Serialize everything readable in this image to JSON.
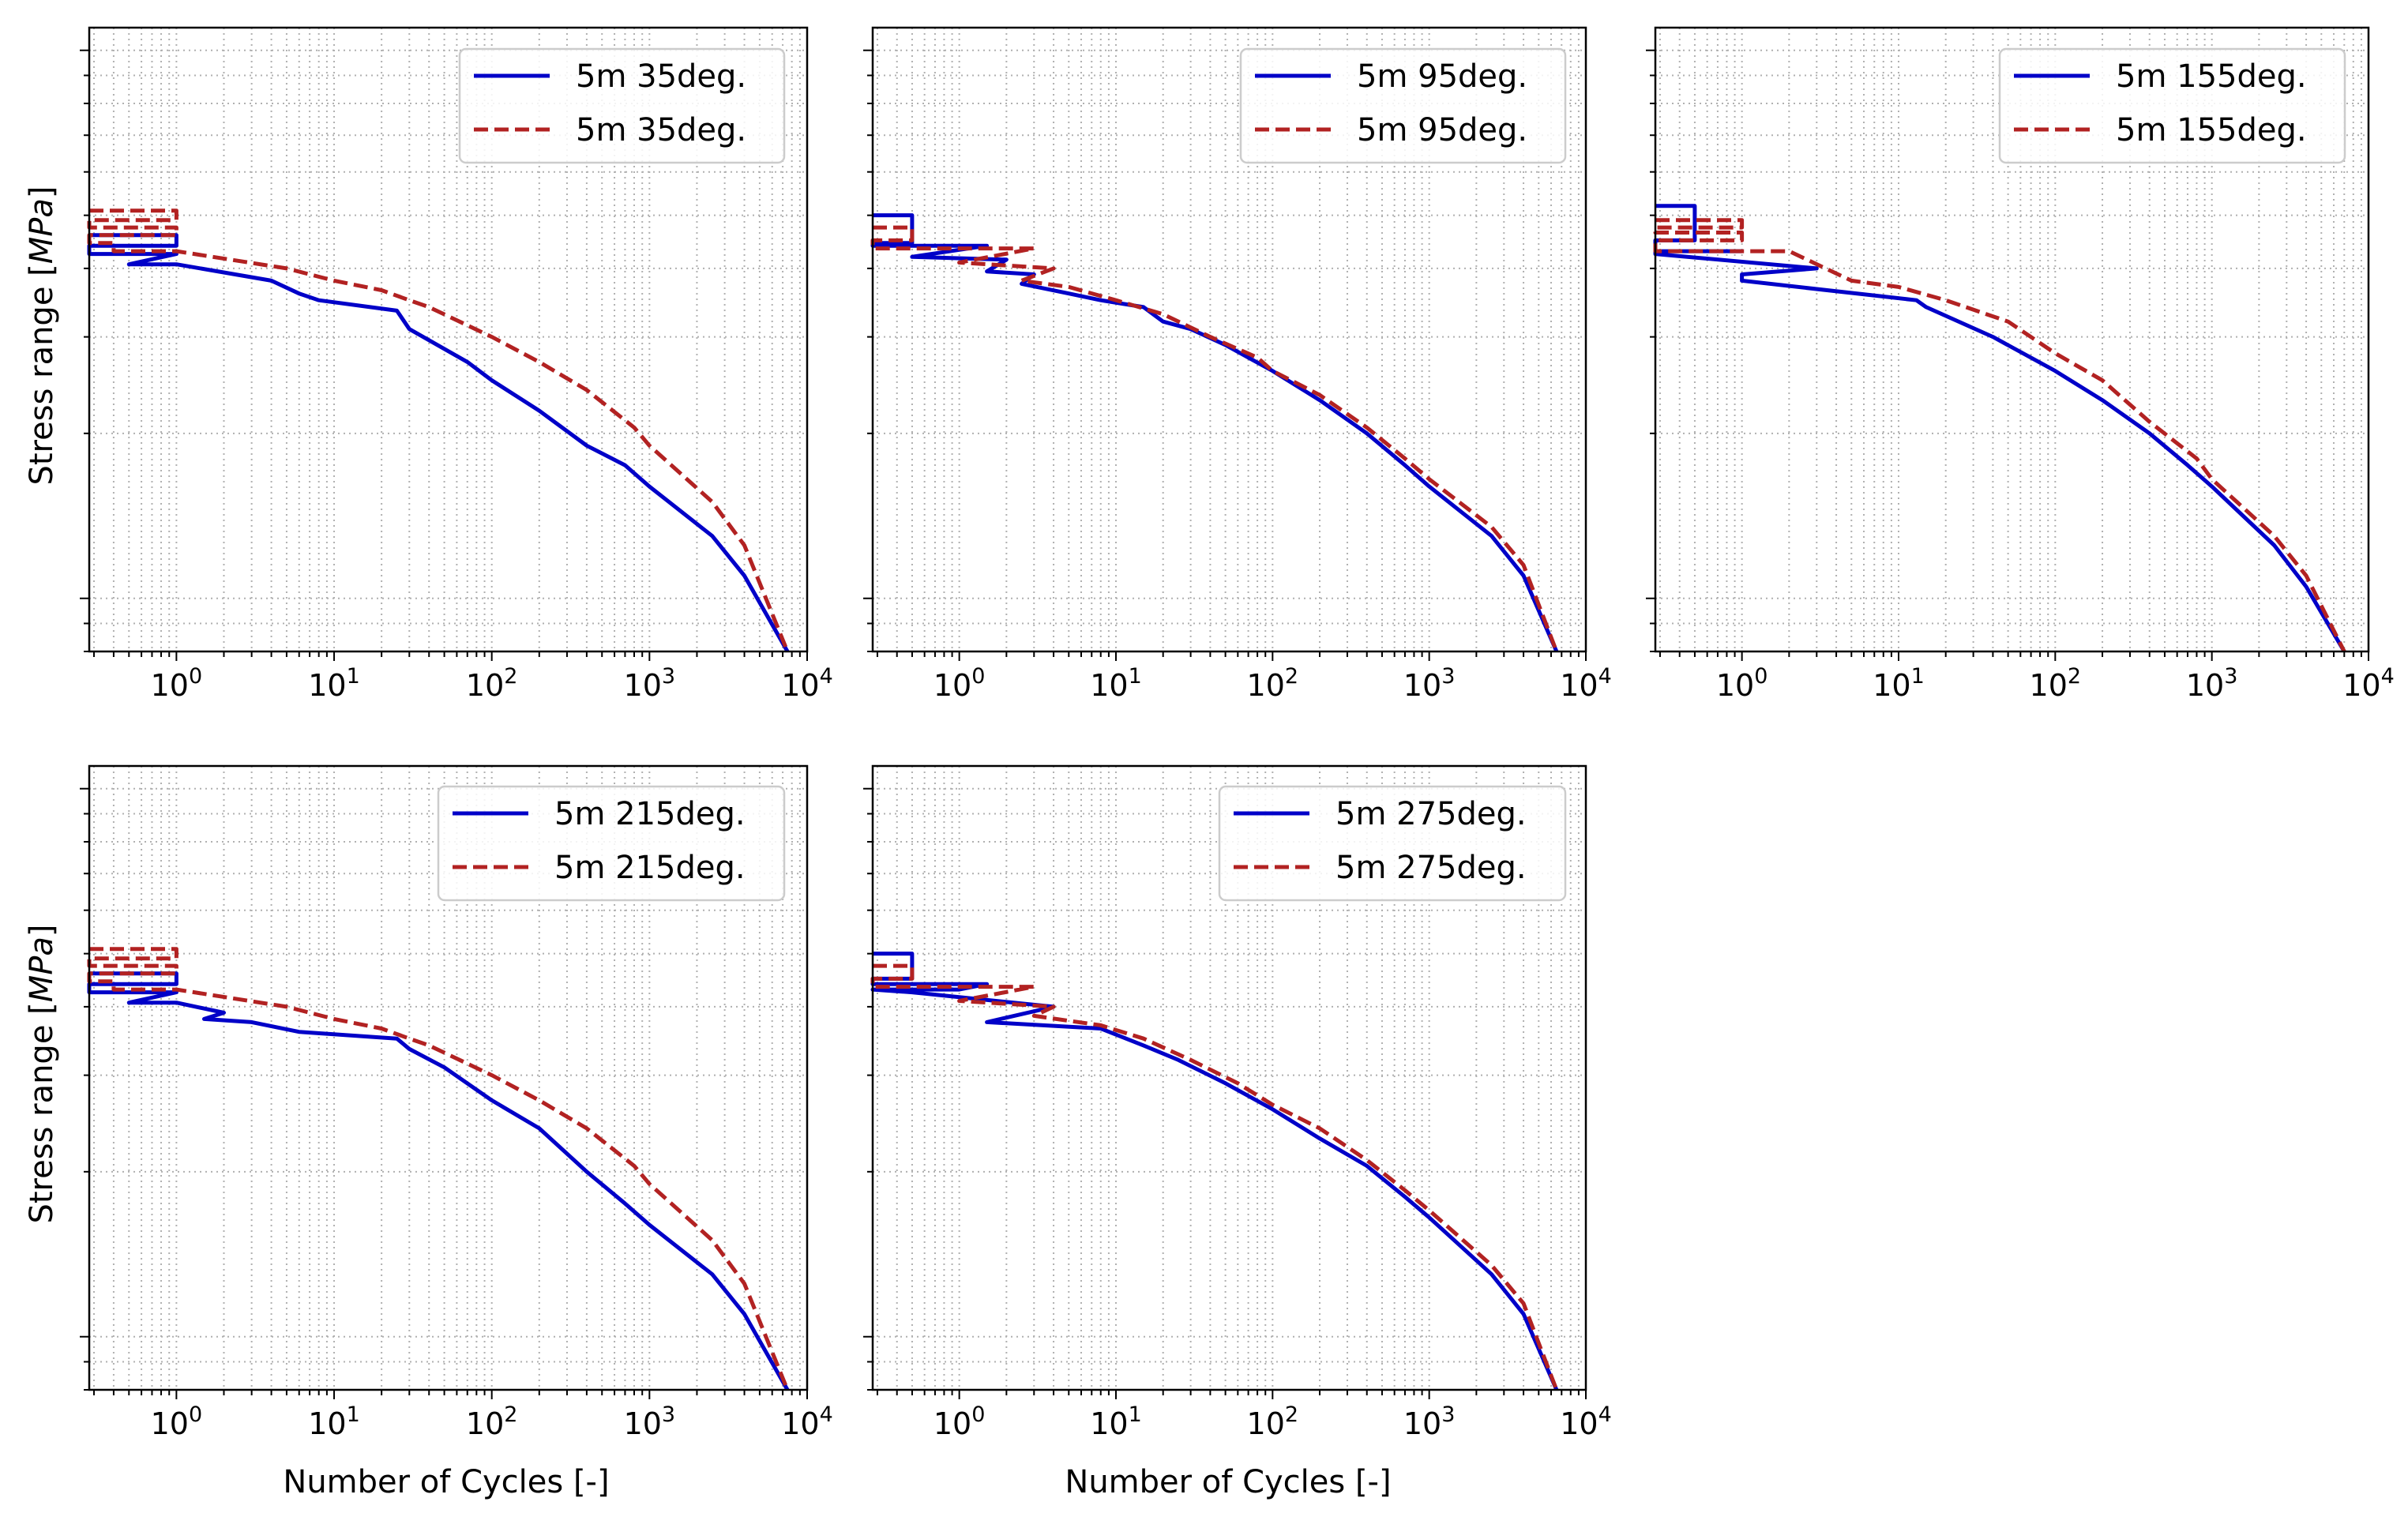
{
  "figure": {
    "xlabel": "Number of Cycles [-]",
    "ylabel": "Stress range [MPa]",
    "ylabel_plain": "Stress range [",
    "ylabel_unit": "MPa",
    "ylabel_close": "]",
    "colors": {
      "solid": "#0000c8",
      "dashed": "#b22222",
      "grid": "#b0b0b0"
    }
  },
  "chart_data": [
    {
      "type": "line",
      "xscale": "log",
      "yscale": "log",
      "xlim": [
        0.28,
        10000
      ],
      "ylim": [
        8,
        110
      ],
      "xticks": [
        {
          "base": "10",
          "exp": "0"
        },
        {
          "base": "10",
          "exp": "1"
        },
        {
          "base": "10",
          "exp": "2"
        },
        {
          "base": "10",
          "exp": "3"
        },
        {
          "base": "10",
          "exp": "4"
        }
      ],
      "legend_location": "upper right",
      "series": [
        {
          "name": "5m 35deg.",
          "style": "solid",
          "x": [
            0.28,
            1,
            1,
            0.28,
            0.28,
            1,
            0.5,
            1,
            4,
            6,
            8,
            25,
            30,
            70,
            100,
            200,
            400,
            700,
            1000,
            2500,
            4000,
            7500
          ],
          "y": [
            46,
            46,
            44,
            44,
            42.5,
            42.5,
            40.7,
            40.7,
            38,
            36,
            35,
            33.5,
            31,
            27,
            25,
            22,
            19,
            17.5,
            16,
            13,
            11,
            8
          ]
        },
        {
          "name": "5m 35deg.",
          "style": "dashed",
          "x": [
            0.28,
            1,
            1,
            0.28,
            0.28,
            1,
            1,
            0.28,
            0.28,
            0.4,
            0.4,
            1,
            5,
            10,
            20,
            30,
            40,
            100,
            200,
            400,
            800,
            1000,
            2500,
            4000,
            7500
          ],
          "y": [
            51,
            51,
            49,
            49,
            47.5,
            47.5,
            46,
            46,
            44.5,
            44.5,
            43,
            43,
            40,
            38,
            36.5,
            35,
            34,
            30,
            27,
            24,
            20.5,
            19,
            15,
            12.5,
            8
          ]
        }
      ]
    },
    {
      "type": "line",
      "xscale": "log",
      "yscale": "log",
      "xlim": [
        0.28,
        10000
      ],
      "ylim": [
        8,
        110
      ],
      "xticks": [
        {
          "base": "10",
          "exp": "0"
        },
        {
          "base": "10",
          "exp": "1"
        },
        {
          "base": "10",
          "exp": "2"
        },
        {
          "base": "10",
          "exp": "3"
        },
        {
          "base": "10",
          "exp": "4"
        }
      ],
      "legend_location": "upper right",
      "series": [
        {
          "name": "5m 95deg.",
          "style": "solid",
          "x": [
            0.28,
            0.5,
            0.5,
            0.28,
            0.28,
            1.5,
            0.5,
            2,
            1.5,
            3,
            2.5,
            5,
            8,
            15,
            20,
            30,
            50,
            70,
            100,
            200,
            400,
            700,
            1000,
            2500,
            4000,
            6500
          ],
          "y": [
            50,
            50,
            44.5,
            44.5,
            44,
            44,
            42,
            41.5,
            39.5,
            39,
            37.5,
            36,
            35,
            34,
            32,
            31,
            29,
            27.5,
            26,
            23,
            20,
            17.5,
            16,
            13,
            11,
            8
          ]
        },
        {
          "name": "5m 95deg.",
          "style": "dashed",
          "x": [
            0.28,
            0.5,
            0.5,
            0.28,
            0.28,
            3,
            1,
            4,
            2.5,
            5,
            10,
            20,
            40,
            80,
            100,
            200,
            400,
            700,
            1000,
            2500,
            4000,
            6500
          ],
          "y": [
            47.5,
            47.5,
            45,
            45,
            43.5,
            43.5,
            41,
            40,
            38,
            37,
            35,
            33,
            30,
            27.5,
            26,
            23.5,
            20.5,
            18,
            16.5,
            13.5,
            11.5,
            8
          ]
        }
      ]
    },
    {
      "type": "line",
      "xscale": "log",
      "yscale": "log",
      "xlim": [
        0.28,
        10000
      ],
      "ylim": [
        8,
        110
      ],
      "xticks": [
        {
          "base": "10",
          "exp": "0"
        },
        {
          "base": "10",
          "exp": "1"
        },
        {
          "base": "10",
          "exp": "2"
        },
        {
          "base": "10",
          "exp": "3"
        },
        {
          "base": "10",
          "exp": "4"
        }
      ],
      "legend_location": "upper right",
      "series": [
        {
          "name": "5m 155deg.",
          "style": "solid",
          "x": [
            0.28,
            0.5,
            0.5,
            0.28,
            0.28,
            1,
            0.28,
            0.28,
            3,
            1,
            1,
            13,
            15,
            40,
            100,
            200,
            400,
            700,
            1000,
            2500,
            4000,
            7000
          ],
          "y": [
            52,
            52,
            45,
            45,
            43,
            43,
            43,
            42.5,
            40,
            39,
            38,
            35,
            34,
            30,
            26,
            23,
            20,
            17.5,
            16,
            12.5,
            10.5,
            8
          ]
        },
        {
          "name": "5m 155deg.",
          "style": "dashed",
          "x": [
            0.28,
            1,
            1,
            0.28,
            0.28,
            1,
            1,
            0.28,
            0.28,
            2,
            5,
            10,
            20,
            50,
            100,
            200,
            400,
            800,
            1000,
            2500,
            4000,
            7000
          ],
          "y": [
            49,
            49,
            47.5,
            47.5,
            46.5,
            46.5,
            45,
            45,
            43,
            43,
            38,
            37,
            35,
            32,
            28,
            25,
            21,
            18,
            16.5,
            13,
            11,
            8
          ]
        }
      ]
    },
    {
      "type": "line",
      "xscale": "log",
      "yscale": "log",
      "xlim": [
        0.28,
        10000
      ],
      "ylim": [
        8,
        110
      ],
      "xticks": [
        {
          "base": "10",
          "exp": "0"
        },
        {
          "base": "10",
          "exp": "1"
        },
        {
          "base": "10",
          "exp": "2"
        },
        {
          "base": "10",
          "exp": "3"
        },
        {
          "base": "10",
          "exp": "4"
        }
      ],
      "legend_location": "upper right",
      "series": [
        {
          "name": "5m 215deg.",
          "style": "solid",
          "x": [
            0.28,
            1,
            1,
            0.28,
            0.28,
            1,
            0.5,
            1,
            2,
            1.5,
            3,
            6,
            25,
            30,
            50,
            100,
            200,
            400,
            700,
            1000,
            2500,
            4000,
            7500
          ],
          "y": [
            46,
            46,
            44,
            44,
            42.5,
            42.5,
            40.7,
            40.7,
            39,
            38,
            37.5,
            36,
            35,
            33.5,
            31,
            27,
            24,
            20,
            17.5,
            16,
            13,
            11,
            8
          ]
        },
        {
          "name": "5m 215deg.",
          "style": "dashed",
          "x": [
            0.28,
            1,
            1,
            0.28,
            0.28,
            1,
            1,
            0.28,
            0.28,
            0.4,
            0.4,
            1,
            5,
            10,
            20,
            30,
            40,
            100,
            200,
            400,
            800,
            1000,
            2500,
            4000,
            7500
          ],
          "y": [
            51,
            51,
            49,
            49,
            47.5,
            47.5,
            46,
            46,
            44.5,
            44.5,
            43,
            43,
            40,
            38,
            36.5,
            35,
            34,
            30,
            27,
            24,
            20.5,
            19,
            15,
            12.5,
            8
          ]
        }
      ]
    },
    {
      "type": "line",
      "xscale": "log",
      "yscale": "log",
      "xlim": [
        0.28,
        10000
      ],
      "ylim": [
        8,
        110
      ],
      "xticks": [
        {
          "base": "10",
          "exp": "0"
        },
        {
          "base": "10",
          "exp": "1"
        },
        {
          "base": "10",
          "exp": "2"
        },
        {
          "base": "10",
          "exp": "3"
        },
        {
          "base": "10",
          "exp": "4"
        }
      ],
      "legend_location": "upper right",
      "series": [
        {
          "name": "5m 275deg.",
          "style": "solid",
          "x": [
            0.28,
            0.5,
            0.5,
            0.28,
            0.28,
            1.5,
            1,
            0.28,
            0.5,
            4,
            1.5,
            8,
            15,
            25,
            50,
            100,
            200,
            400,
            700,
            1000,
            2500,
            4000,
            6500
          ],
          "y": [
            50,
            50,
            45,
            45,
            44,
            44,
            43,
            43,
            42.5,
            40,
            37.5,
            36.5,
            34,
            32,
            29,
            26,
            23,
            20.5,
            18,
            16.5,
            13,
            11,
            8
          ]
        },
        {
          "name": "5m 275deg.",
          "style": "dashed",
          "x": [
            0.28,
            0.5,
            0.5,
            0.28,
            0.28,
            3,
            1,
            4,
            3,
            8,
            15,
            30,
            60,
            100,
            200,
            400,
            700,
            1000,
            2500,
            4000,
            6500
          ],
          "y": [
            47.5,
            47.5,
            45,
            45,
            43.5,
            43.5,
            41,
            40,
            38.5,
            37,
            35,
            32,
            29,
            26.5,
            24,
            21,
            18.5,
            17,
            13.5,
            11.5,
            8
          ]
        }
      ]
    }
  ]
}
